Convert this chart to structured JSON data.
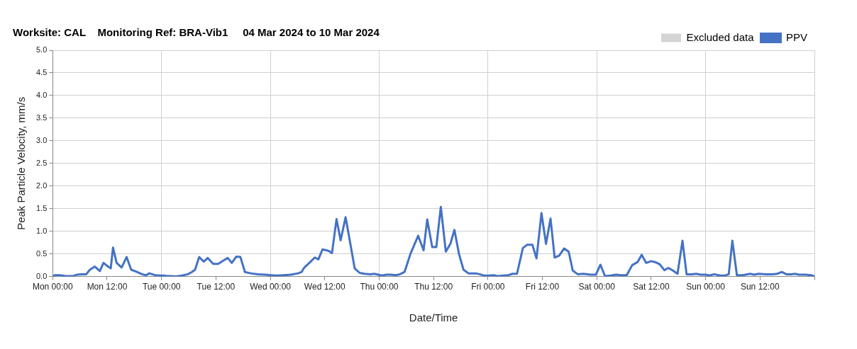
{
  "chart_data": {
    "type": "line",
    "title": "Worksite: CAL    Monitoring Ref: BRA-Vib1     04 Mar 2024 to 10 Mar 2024",
    "xlabel": "Date/Time",
    "ylabel": "Peak Particle Velocity, mm/s",
    "xlim": [
      "2024-03-04T00:00",
      "2024-03-11T00:00"
    ],
    "xticks": [
      {
        "value": "2024-03-04T00:00",
        "label": "Mon 00:00"
      },
      {
        "value": "2024-03-04T12:00",
        "label": "Mon 12:00"
      },
      {
        "value": "2024-03-05T00:00",
        "label": "Tue 00:00"
      },
      {
        "value": "2024-03-05T12:00",
        "label": "Tue 12:00"
      },
      {
        "value": "2024-03-06T00:00",
        "label": "Wed 00:00"
      },
      {
        "value": "2024-03-06T12:00",
        "label": "Wed 12:00"
      },
      {
        "value": "2024-03-07T00:00",
        "label": "Thu 00:00"
      },
      {
        "value": "2024-03-07T12:00",
        "label": "Thu 12:00"
      },
      {
        "value": "2024-03-08T00:00",
        "label": "Fri 00:00"
      },
      {
        "value": "2024-03-08T12:00",
        "label": "Fri 12:00"
      },
      {
        "value": "2024-03-09T00:00",
        "label": "Sat 00:00"
      },
      {
        "value": "2024-03-09T12:00",
        "label": "Sat 12:00"
      },
      {
        "value": "2024-03-10T00:00",
        "label": "Sun 00:00"
      },
      {
        "value": "2024-03-10T12:00",
        "label": "Sun 12:00"
      },
      {
        "value": "2024-03-11T00:00",
        "label": null
      }
    ],
    "ylim": [
      0,
      5
    ],
    "yticks": [
      {
        "value": 0,
        "label": "0.0"
      },
      {
        "value": 0.5,
        "label": "0.5"
      },
      {
        "value": 1,
        "label": "1.0"
      },
      {
        "value": 1.5,
        "label": "1.5"
      },
      {
        "value": 2,
        "label": "2.0"
      },
      {
        "value": 2.5,
        "label": "2.5"
      },
      {
        "value": 3,
        "label": "3.0"
      },
      {
        "value": 3.5,
        "label": "3.5"
      },
      {
        "value": 4,
        "label": "4.0"
      },
      {
        "value": 4.5,
        "label": "4.5"
      },
      {
        "value": 5,
        "label": "5.0"
      }
    ],
    "grid": true,
    "legend": "top right",
    "marker": "none",
    "line_style": "solid",
    "series": [
      {
        "name": "Excluded data",
        "type": "area",
        "color": "#d4d4d4"
      },
      {
        "name": "PPV",
        "type": "line",
        "color": "#4472c4",
        "x": [
          "2024-03-04T00:00",
          "2024-03-04T00:30",
          "2024-03-04T01:36",
          "2024-03-04T02:54",
          "2024-03-04T04:30",
          "2024-03-04T05:18",
          "2024-03-04T06:24",
          "2024-03-04T07:24",
          "2024-03-04T08:12",
          "2024-03-04T09:18",
          "2024-03-04T10:24",
          "2024-03-04T11:12",
          "2024-03-04T12:12",
          "2024-03-04T12:48",
          "2024-03-04T13:18",
          "2024-03-04T14:06",
          "2024-03-04T15:12",
          "2024-03-04T16:18",
          "2024-03-04T17:18",
          "2024-03-04T18:24",
          "2024-03-04T19:42",
          "2024-03-04T20:36",
          "2024-03-04T21:18",
          "2024-03-04T22:36",
          "2024-03-04T23:42",
          "2024-03-05T00:30",
          "2024-03-05T01:18",
          "2024-03-05T02:00",
          "2024-03-05T03:12",
          "2024-03-05T04:30",
          "2024-03-05T05:48",
          "2024-03-05T06:42",
          "2024-03-05T07:24",
          "2024-03-05T08:18",
          "2024-03-05T09:18",
          "2024-03-05T10:12",
          "2024-03-05T11:24",
          "2024-03-05T12:30",
          "2024-03-05T13:36",
          "2024-03-05T14:36",
          "2024-03-05T15:30",
          "2024-03-05T16:30",
          "2024-03-05T17:24",
          "2024-03-05T18:24",
          "2024-03-05T19:42",
          "2024-03-05T21:18",
          "2024-03-05T22:54",
          "2024-03-06T00:12",
          "2024-03-06T01:18",
          "2024-03-06T02:54",
          "2024-03-06T04:30",
          "2024-03-06T06:06",
          "2024-03-06T06:54",
          "2024-03-06T07:30",
          "2024-03-06T08:48",
          "2024-03-06T09:48",
          "2024-03-06T10:36",
          "2024-03-06T11:30",
          "2024-03-06T12:48",
          "2024-03-06T13:36",
          "2024-03-06T14:36",
          "2024-03-06T15:30",
          "2024-03-06T16:36",
          "2024-03-06T17:36",
          "2024-03-06T18:36",
          "2024-03-06T19:42",
          "2024-03-06T20:48",
          "2024-03-06T22:06",
          "2024-03-06T22:54",
          "2024-03-06T23:48",
          "2024-03-07T00:36",
          "2024-03-07T01:36",
          "2024-03-07T02:36",
          "2024-03-07T03:42",
          "2024-03-07T04:36",
          "2024-03-07T05:36",
          "2024-03-07T06:54",
          "2024-03-07T08:36",
          "2024-03-07T09:48",
          "2024-03-07T10:36",
          "2024-03-07T11:42",
          "2024-03-07T12:36",
          "2024-03-07T13:36",
          "2024-03-07T14:42",
          "2024-03-07T15:42",
          "2024-03-07T16:36",
          "2024-03-07T17:36",
          "2024-03-07T18:36",
          "2024-03-07T19:42",
          "2024-03-07T21:18",
          "2024-03-07T22:12",
          "2024-03-07T23:12",
          "2024-03-08T00:12",
          "2024-03-08T01:18",
          "2024-03-08T02:06",
          "2024-03-08T03:24",
          "2024-03-08T04:30",
          "2024-03-08T05:24",
          "2024-03-08T06:24",
          "2024-03-08T07:42",
          "2024-03-08T08:36",
          "2024-03-08T09:48",
          "2024-03-08T10:42",
          "2024-03-08T11:48",
          "2024-03-08T12:48",
          "2024-03-08T13:48",
          "2024-03-08T14:42",
          "2024-03-08T15:42",
          "2024-03-08T16:48",
          "2024-03-08T17:48",
          "2024-03-08T18:42",
          "2024-03-08T19:48",
          "2024-03-08T21:00",
          "2024-03-08T22:36",
          "2024-03-08T23:48",
          "2024-03-09T00:48",
          "2024-03-09T01:48",
          "2024-03-09T03:00",
          "2024-03-09T04:18",
          "2024-03-09T05:18",
          "2024-03-09T06:36",
          "2024-03-09T07:48",
          "2024-03-09T09:00",
          "2024-03-09T09:54",
          "2024-03-09T10:54",
          "2024-03-09T12:00",
          "2024-03-09T13:06",
          "2024-03-09T13:54",
          "2024-03-09T14:54",
          "2024-03-09T15:48",
          "2024-03-09T16:48",
          "2024-03-09T17:48",
          "2024-03-09T18:54",
          "2024-03-09T19:48",
          "2024-03-09T21:00",
          "2024-03-09T21:54",
          "2024-03-09T22:54",
          "2024-03-10T00:00",
          "2024-03-10T00:48",
          "2024-03-10T01:54",
          "2024-03-10T03:12",
          "2024-03-10T04:12",
          "2024-03-10T05:06",
          "2024-03-10T05:54",
          "2024-03-10T06:54",
          "2024-03-10T08:12",
          "2024-03-10T09:48",
          "2024-03-10T10:42",
          "2024-03-10T11:42",
          "2024-03-10T13:18",
          "2024-03-10T14:36",
          "2024-03-10T15:48",
          "2024-03-10T16:48",
          "2024-03-10T17:48",
          "2024-03-10T18:54",
          "2024-03-10T19:42",
          "2024-03-10T20:36",
          "2024-03-10T22:06",
          "2024-03-10T23:12",
          "2024-03-11T00:00"
        ],
        "values": [
          0.01,
          0.03,
          0.03,
          0.01,
          0.01,
          0.04,
          0.05,
          0.05,
          0.15,
          0.22,
          0.12,
          0.3,
          0.22,
          0.18,
          0.64,
          0.3,
          0.2,
          0.43,
          0.15,
          0.11,
          0.05,
          0.03,
          0.07,
          0.03,
          0.02,
          0.02,
          0.01,
          0.01,
          0,
          0.02,
          0.05,
          0.1,
          0.15,
          0.43,
          0.33,
          0.41,
          0.28,
          0.28,
          0.35,
          0.41,
          0.3,
          0.44,
          0.43,
          0.1,
          0.07,
          0.05,
          0.04,
          0.03,
          0.02,
          0.03,
          0.04,
          0.07,
          0.1,
          0.2,
          0.32,
          0.42,
          0.38,
          0.6,
          0.57,
          0.52,
          1.27,
          0.8,
          1.31,
          0.75,
          0.18,
          0.08,
          0.06,
          0.05,
          0.06,
          0.04,
          0.02,
          0.04,
          0.04,
          0.03,
          0.05,
          0.1,
          0.5,
          0.9,
          0.58,
          1.26,
          0.65,
          0.65,
          1.54,
          0.55,
          0.72,
          1.03,
          0.5,
          0.15,
          0.07,
          0.07,
          0.05,
          0.02,
          0.02,
          0.03,
          0.01,
          0.02,
          0.03,
          0.06,
          0.06,
          0.63,
          0.7,
          0.7,
          0.4,
          1.4,
          0.72,
          1.28,
          0.42,
          0.46,
          0.62,
          0.55,
          0.13,
          0.05,
          0.06,
          0.04,
          0.04,
          0.26,
          0.01,
          0.02,
          0.04,
          0.03,
          0.03,
          0.25,
          0.32,
          0.48,
          0.3,
          0.34,
          0.31,
          0.27,
          0.14,
          0.19,
          0.13,
          0.06,
          0.79,
          0.05,
          0.05,
          0.06,
          0.04,
          0.04,
          0.02,
          0.05,
          0.02,
          0.02,
          0.05,
          0.79,
          0.03,
          0.03,
          0.06,
          0.04,
          0.06,
          0.05,
          0.05,
          0.06,
          0.1,
          0.05,
          0.05,
          0.06,
          0.04,
          0.04,
          0.03,
          0.01
        ]
      }
    ]
  }
}
